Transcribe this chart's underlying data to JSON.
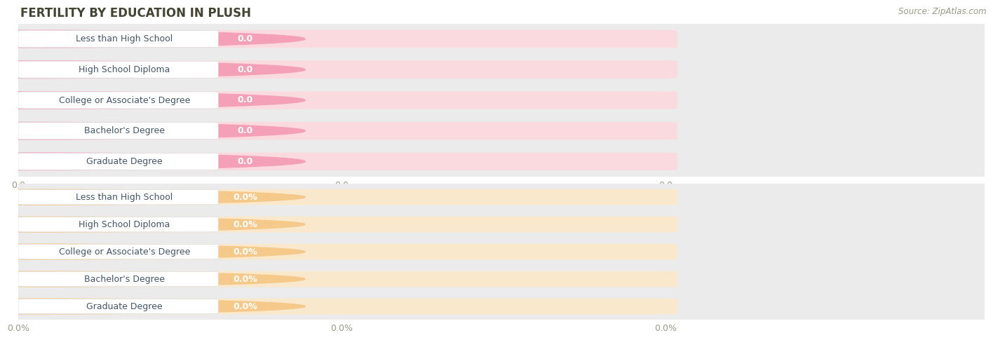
{
  "title": "FERTILITY BY EDUCATION IN PLUSH",
  "source": "Source: ZipAtlas.com",
  "categories": [
    "Less than High School",
    "High School Diploma",
    "College or Associate's Degree",
    "Bachelor's Degree",
    "Graduate Degree"
  ],
  "values_top": [
    0.0,
    0.0,
    0.0,
    0.0,
    0.0
  ],
  "values_bottom": [
    0.0,
    0.0,
    0.0,
    0.0,
    0.0
  ],
  "bar_color_top": "#F4A0B8",
  "bar_color_bottom": "#F5C98A",
  "bar_bg_color_top": "#FADADF",
  "bar_bg_color_bottom": "#FAE8CC",
  "row_bg_color": "#EBEBEB",
  "row_bg_alt_color": "#E0E0E0",
  "title_color": "#444433",
  "source_color": "#999988",
  "tick_color": "#999988",
  "label_text_color": "#445566",
  "value_text_color": "#FFFFFF",
  "background_color": "#FFFFFF",
  "tick_labels_top": [
    "0.0",
    "0.0",
    "0.0"
  ],
  "tick_labels_bottom": [
    "0.0%",
    "0.0%",
    "0.0%"
  ],
  "figsize": [
    14.06,
    4.75
  ],
  "dpi": 100
}
